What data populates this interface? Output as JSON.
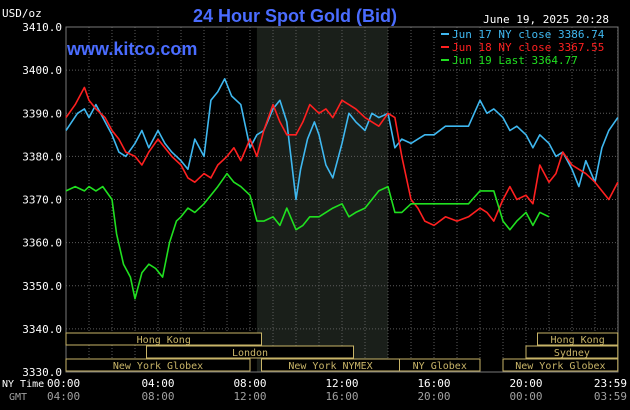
{
  "header": {
    "title": "24 Hour Spot Gold (Bid)",
    "unit_label": "USD/oz",
    "watermark": "www.kitco.com",
    "timestamp": "June 19, 2025 20:28"
  },
  "legend": {
    "placement": "top-right",
    "entries": [
      {
        "label": "Jun 17 NY close 3386.74",
        "color": "#3fb8f0"
      },
      {
        "label": "Jun 18 NY close 3367.55",
        "color": "#ff2020"
      },
      {
        "label": "Jun 19 Last 3364.77",
        "color": "#20e020"
      }
    ]
  },
  "axis_labels": {
    "ny_time": "NY Time",
    "gmt": "GMT"
  },
  "sessions": [
    {
      "name": "Hong Kong",
      "start": 0,
      "end": 8.5,
      "row": 1
    },
    {
      "name": "London",
      "start": 3.5,
      "end": 12.5,
      "row": 2
    },
    {
      "name": "New York Globex",
      "start": 0,
      "end": 8,
      "row": 3
    },
    {
      "name": "New York NYMEX",
      "start": 8.5,
      "end": 14.5,
      "row": 3
    },
    {
      "name": "NY Globex",
      "start": 14.5,
      "end": 18,
      "row": 3
    },
    {
      "name": "Hong Kong",
      "start": 20.5,
      "end": 24,
      "row": 1
    },
    {
      "name": "Sydney",
      "start": 20,
      "end": 24,
      "row": 2
    },
    {
      "name": "New York Globex",
      "start": 19,
      "end": 24,
      "row": 3
    }
  ],
  "colors": {
    "background": "#000000",
    "plot_bg": "#000000",
    "highlight_band": "#1a1f1a",
    "grid": "#5c5c5c",
    "title": "#4a6cff",
    "watermark": "#4a6cff",
    "axis_text": "#ffffff",
    "gmt_text": "#a0a0a0",
    "session_box": "#c8b468"
  },
  "chart_data": {
    "type": "line",
    "title": "24 Hour Spot Gold (Bid)",
    "ylabel": "USD/oz",
    "xlabel": "",
    "xlim": [
      0,
      24
    ],
    "ylim": [
      3330,
      3410
    ],
    "highlight_range": [
      8.3,
      14.0
    ],
    "y_ticks": [
      "3330.0",
      "3340.0",
      "3350.0",
      "3360.0",
      "3370.0",
      "3380.0",
      "3390.0",
      "3400.0",
      "3410.0"
    ],
    "x_ticks_ny": [
      "00:00",
      "04:00",
      "08:00",
      "12:00",
      "16:00",
      "20:00",
      "23:59"
    ],
    "x_ticks_gmt": [
      "04:00",
      "08:00",
      "12:00",
      "16:00",
      "20:00",
      "00:00",
      "03:59"
    ],
    "grid": true,
    "series": [
      {
        "name": "Jun 17 NY close 3386.74",
        "color": "#3fb8f0",
        "x": [
          0,
          0.5,
          0.8,
          1.0,
          1.3,
          1.7,
          2.0,
          2.3,
          2.6,
          3.0,
          3.3,
          3.6,
          4.0,
          4.3,
          4.6,
          5.0,
          5.3,
          5.6,
          6.0,
          6.3,
          6.6,
          6.9,
          7.2,
          7.6,
          8.0,
          8.3,
          8.6,
          9.0,
          9.3,
          9.6,
          10.0,
          10.2,
          10.5,
          10.8,
          11.0,
          11.3,
          11.6,
          12.0,
          12.3,
          12.6,
          13.0,
          13.3,
          13.6,
          14.0,
          14.3,
          14.6,
          15.0,
          15.3,
          15.6,
          16.0,
          16.5,
          17.0,
          17.5,
          18.0,
          18.3,
          18.6,
          19.0,
          19.3,
          19.6,
          20.0,
          20.3,
          20.6,
          21.0,
          21.3,
          21.6,
          22.0,
          22.3,
          22.6,
          23.0,
          23.3,
          23.6,
          23.99
        ],
        "y": [
          3386,
          3390,
          3391,
          3389,
          3392,
          3388,
          3385,
          3381,
          3380,
          3383,
          3386,
          3382,
          3386,
          3383,
          3381,
          3379,
          3377,
          3384,
          3380,
          3393,
          3395,
          3398,
          3394,
          3392,
          3382,
          3385,
          3386,
          3391,
          3393,
          3388,
          3370,
          3377,
          3384,
          3388,
          3385,
          3378,
          3375,
          3383,
          3390,
          3388,
          3386,
          3390,
          3389,
          3390,
          3382,
          3384,
          3383,
          3384,
          3385,
          3385,
          3387,
          3387,
          3387,
          3393,
          3390,
          3391,
          3389,
          3386,
          3387,
          3385,
          3382,
          3385,
          3383,
          3380,
          3381,
          3377,
          3373,
          3379,
          3374,
          3382,
          3386,
          3389
        ]
      },
      {
        "name": "Jun 18 NY close 3367.55",
        "color": "#ff2020",
        "x": [
          0,
          0.4,
          0.8,
          1.0,
          1.3,
          1.7,
          2.0,
          2.3,
          2.6,
          3.0,
          3.3,
          3.6,
          4.0,
          4.3,
          4.6,
          5.0,
          5.3,
          5.6,
          6.0,
          6.3,
          6.6,
          7.0,
          7.3,
          7.6,
          8.0,
          8.3,
          8.6,
          9.0,
          9.3,
          9.6,
          10.0,
          10.3,
          10.6,
          11.0,
          11.3,
          11.6,
          12.0,
          12.3,
          12.6,
          13.0,
          13.3,
          13.6,
          14.0,
          14.3,
          14.6,
          15.0,
          15.3,
          15.6,
          16.0,
          16.5,
          17.0,
          17.5,
          18.0,
          18.3,
          18.6,
          19.0,
          19.3,
          19.6,
          20.0,
          20.3,
          20.6,
          21.0,
          21.3,
          21.6,
          22.0,
          22.3,
          22.6,
          23.0,
          23.3,
          23.6,
          23.99
        ],
        "y": [
          3389,
          3392,
          3396,
          3393,
          3391,
          3389,
          3386,
          3384,
          3381,
          3380,
          3378,
          3381,
          3384,
          3382,
          3380,
          3378,
          3375,
          3374,
          3376,
          3375,
          3378,
          3380,
          3382,
          3379,
          3384,
          3380,
          3386,
          3392,
          3388,
          3385,
          3385,
          3388,
          3392,
          3390,
          3391,
          3389,
          3393,
          3392,
          3391,
          3389,
          3388,
          3387,
          3390,
          3389,
          3380,
          3370,
          3368,
          3365,
          3364,
          3366,
          3365,
          3366,
          3368,
          3367,
          3365,
          3370,
          3373,
          3370,
          3371,
          3369,
          3378,
          3374,
          3376,
          3381,
          3378,
          3377,
          3376,
          3374,
          3372,
          3370,
          3374
        ]
      },
      {
        "name": "Jun 19 Last 3364.77",
        "color": "#20e020",
        "x": [
          0,
          0.4,
          0.8,
          1.0,
          1.3,
          1.6,
          2.0,
          2.2,
          2.5,
          2.8,
          3.0,
          3.3,
          3.6,
          3.9,
          4.2,
          4.5,
          4.8,
          5.0,
          5.3,
          5.6,
          6.0,
          6.3,
          6.6,
          7.0,
          7.3,
          7.6,
          8.0,
          8.3,
          8.6,
          9.0,
          9.3,
          9.6,
          10.0,
          10.3,
          10.6,
          11.0,
          11.3,
          11.6,
          12.0,
          12.3,
          12.6,
          13.0,
          13.3,
          13.6,
          14.0,
          14.3,
          14.6,
          15.0,
          15.3,
          15.6,
          16.0,
          16.5,
          17.0,
          17.5,
          18.0,
          18.3,
          18.6,
          19.0,
          19.3,
          19.6,
          20.0,
          20.3,
          20.6,
          21.0
        ],
        "y": [
          3372,
          3373,
          3372,
          3373,
          3372,
          3373,
          3370,
          3362,
          3355,
          3352,
          3347,
          3353,
          3355,
          3354,
          3352,
          3360,
          3365,
          3366,
          3368,
          3367,
          3369,
          3371,
          3373,
          3376,
          3374,
          3373,
          3371,
          3365,
          3365,
          3366,
          3364,
          3368,
          3363,
          3364,
          3366,
          3366,
          3367,
          3368,
          3369,
          3366,
          3367,
          3368,
          3370,
          3372,
          3373,
          3367,
          3367,
          3369,
          3369,
          3369,
          3369,
          3369,
          3369,
          3369,
          3372,
          3372,
          3372,
          3365,
          3363,
          3365,
          3367,
          3364,
          3367,
          3366
        ]
      }
    ]
  }
}
